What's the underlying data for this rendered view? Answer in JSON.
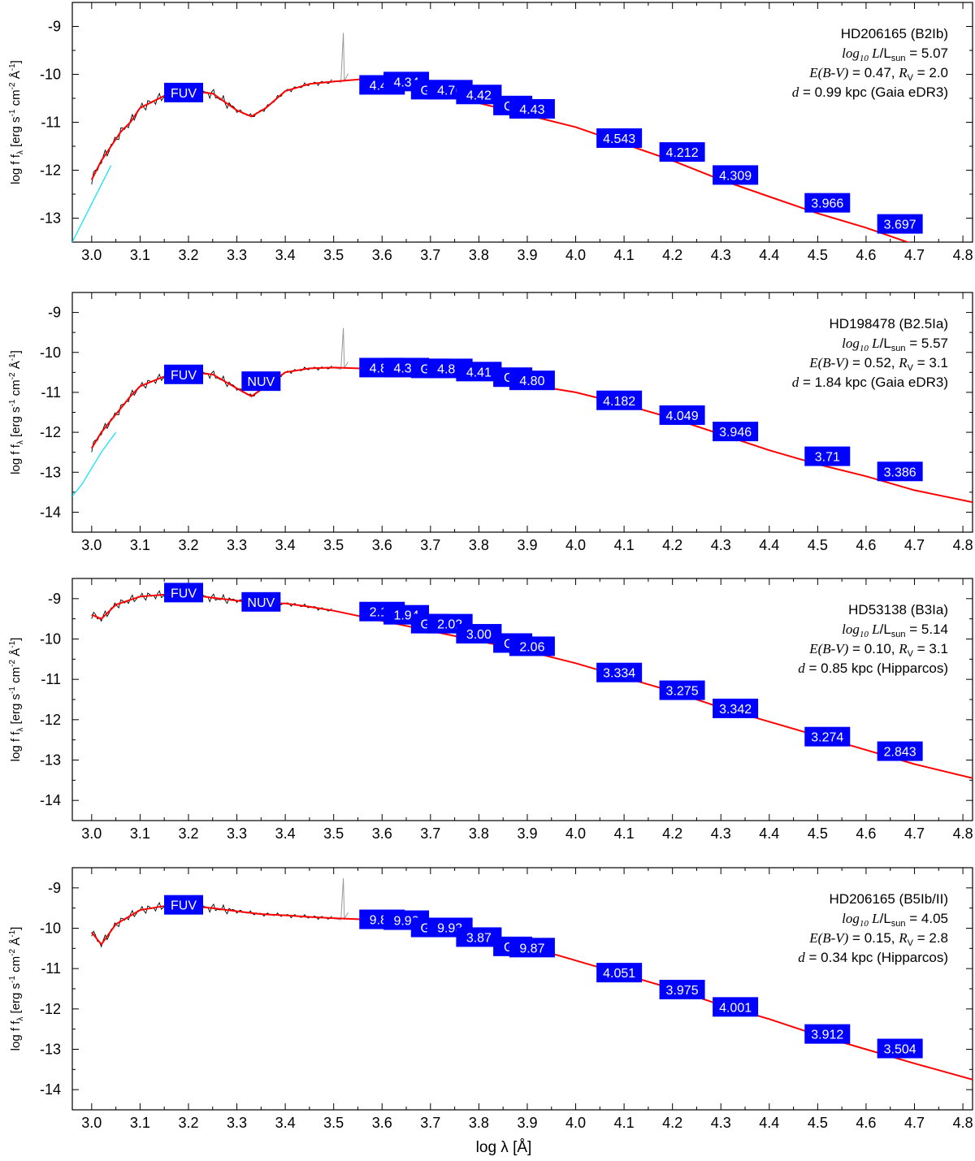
{
  "figure": {
    "xlabel": "log λ [Å]",
    "ylabel_panel": "log f",
    "ylabel_sub": "λ",
    "ylabel_unit": "[erg s",
    "ylabel_unit2": "cm",
    "ylabel_unit3": "Å",
    "colors": {
      "model": "#ff0000",
      "spectrum": "#000000",
      "iue": "#00e5ff",
      "optical": "#999999",
      "box": "#0000ff",
      "box_text": "#ffffff"
    }
  },
  "chart_data": [
    {
      "type": "line",
      "star": "HD206165 (B2Ib)",
      "lum_label": "log",
      "lum_sub": "10",
      "lum_text": " L/L",
      "lum_sun": "sun",
      "lum_value": " = 5.07",
      "ebv": "E(B-V) = 0.47, ",
      "rv_label": "R",
      "rv_sub": "V",
      "rv_value": " = 2.0",
      "distance": "d = 0.99 kpc (Gaia eDR3)",
      "xlim": [
        2.96,
        4.82
      ],
      "ylim": [
        -13.5,
        -8.5
      ],
      "yticks": [
        -9,
        -10,
        -11,
        -12,
        -13
      ],
      "xticks": [
        3.0,
        3.1,
        3.2,
        3.3,
        3.4,
        3.5,
        3.6,
        3.7,
        3.8,
        3.9,
        4.0,
        4.1,
        4.2,
        4.3,
        4.4,
        4.5,
        4.6,
        4.7,
        4.8
      ],
      "model": {
        "x": [
          3.0,
          3.02,
          3.04,
          3.06,
          3.08,
          3.1,
          3.15,
          3.2,
          3.25,
          3.3,
          3.33,
          3.36,
          3.4,
          3.45,
          3.5,
          3.56,
          3.6,
          3.7,
          3.8,
          3.9,
          4.0,
          4.1,
          4.2,
          4.3,
          4.4,
          4.5,
          4.6,
          4.7
        ],
        "y": [
          -12.2,
          -11.8,
          -11.5,
          -11.2,
          -11.0,
          -10.7,
          -10.45,
          -10.35,
          -10.4,
          -10.75,
          -10.88,
          -10.7,
          -10.35,
          -10.2,
          -10.15,
          -10.1,
          -10.15,
          -10.35,
          -10.6,
          -10.85,
          -11.1,
          -11.45,
          -11.8,
          -12.2,
          -12.55,
          -12.9,
          -13.2,
          -13.55
        ]
      },
      "iue": {
        "x": [
          2.96,
          2.98,
          3.0,
          3.02,
          3.04
        ],
        "y": [
          -13.5,
          -13.1,
          -12.7,
          -12.3,
          -11.9
        ]
      },
      "photometry": [
        {
          "label": "FUV",
          "x": 3.19,
          "y": -10.38
        },
        {
          "label": "4.49",
          "x": 3.6,
          "y": -10.22
        },
        {
          "label": "4.34",
          "x": 3.65,
          "y": -10.15
        },
        {
          "label": "Gbp",
          "x": 3.7,
          "y": -10.32
        },
        {
          "label": "4.76",
          "x": 3.74,
          "y": -10.32
        },
        {
          "label": "4.42",
          "x": 3.8,
          "y": -10.42
        },
        {
          "label": "Grp",
          "x": 3.87,
          "y": -10.65
        },
        {
          "label": "4.43",
          "x": 3.91,
          "y": -10.72
        },
        {
          "label": "4.543",
          "x": 4.09,
          "y": -11.33
        },
        {
          "label": "4.212",
          "x": 4.22,
          "y": -11.62
        },
        {
          "label": "4.309",
          "x": 4.33,
          "y": -12.1
        },
        {
          "label": "3.966",
          "x": 4.52,
          "y": -12.68
        },
        {
          "label": "3.697",
          "x": 4.67,
          "y": -13.12
        }
      ]
    },
    {
      "type": "line",
      "star": "HD198478 (B2.5Ia)",
      "lum_label": "log",
      "lum_sub": "10",
      "lum_text": " L/L",
      "lum_sun": "sun",
      "lum_value": " = 5.57",
      "ebv": "E(B-V) = 0.52, ",
      "rv_label": "R",
      "rv_sub": "V",
      "rv_value": " = 3.1",
      "distance": "d = 1.84 kpc (Gaia eDR3)",
      "xlim": [
        2.96,
        4.82
      ],
      "ylim": [
        -14.5,
        -8.5
      ],
      "yticks": [
        -9,
        -10,
        -11,
        -12,
        -13,
        -14
      ],
      "xticks": [
        3.0,
        3.1,
        3.2,
        3.3,
        3.4,
        3.5,
        3.6,
        3.7,
        3.8,
        3.9,
        4.0,
        4.1,
        4.2,
        4.3,
        4.4,
        4.5,
        4.6,
        4.7,
        4.8
      ],
      "model": {
        "x": [
          3.0,
          3.02,
          3.04,
          3.06,
          3.08,
          3.1,
          3.15,
          3.2,
          3.25,
          3.3,
          3.33,
          3.36,
          3.4,
          3.45,
          3.5,
          3.6,
          3.7,
          3.8,
          3.9,
          4.0,
          4.1,
          4.2,
          4.3,
          4.4,
          4.5,
          4.6,
          4.7,
          4.82
        ],
        "y": [
          -12.4,
          -12.0,
          -11.7,
          -11.4,
          -11.1,
          -10.85,
          -10.6,
          -10.5,
          -10.55,
          -10.9,
          -11.1,
          -10.85,
          -10.5,
          -10.4,
          -10.38,
          -10.42,
          -10.48,
          -10.6,
          -10.8,
          -11.0,
          -11.3,
          -11.65,
          -12.05,
          -12.45,
          -12.8,
          -13.1,
          -13.45,
          -13.75
        ]
      },
      "iue": {
        "x": [
          2.96,
          2.98,
          3.0,
          3.02,
          3.05
        ],
        "y": [
          -13.6,
          -13.3,
          -12.9,
          -12.5,
          -12.0
        ]
      },
      "photometry": [
        {
          "label": "FUV",
          "x": 3.19,
          "y": -10.55
        },
        {
          "label": "NUV",
          "x": 3.35,
          "y": -10.72
        },
        {
          "label": "4.80",
          "x": 3.6,
          "y": -10.38
        },
        {
          "label": "4.31",
          "x": 3.65,
          "y": -10.38
        },
        {
          "label": "Gbp",
          "x": 3.7,
          "y": -10.4
        },
        {
          "label": "4.81",
          "x": 3.74,
          "y": -10.4
        },
        {
          "label": "4.41",
          "x": 3.8,
          "y": -10.48
        },
        {
          "label": "Grp",
          "x": 3.87,
          "y": -10.62
        },
        {
          "label": "4.80",
          "x": 3.91,
          "y": -10.7
        },
        {
          "label": "4.182",
          "x": 4.09,
          "y": -11.2
        },
        {
          "label": "4.049",
          "x": 4.22,
          "y": -11.57
        },
        {
          "label": "3.946",
          "x": 4.33,
          "y": -11.98
        },
        {
          "label": "3.71",
          "x": 4.52,
          "y": -12.6
        },
        {
          "label": "3.386",
          "x": 4.67,
          "y": -12.98
        }
      ]
    },
    {
      "type": "line",
      "star": "HD53138 (B3Ia)",
      "lum_label": "log",
      "lum_sub": "10",
      "lum_text": " L/L",
      "lum_sun": "sun",
      "lum_value": " = 5.14",
      "ebv": "E(B-V) = 0.10, ",
      "rv_label": "R",
      "rv_sub": "V",
      "rv_value": " = 3.1",
      "distance": "d = 0.85 kpc (Hipparcos)",
      "xlim": [
        2.96,
        4.82
      ],
      "ylim": [
        -14.5,
        -8.5
      ],
      "yticks": [
        -9,
        -10,
        -11,
        -12,
        -13,
        -14
      ],
      "xticks": [
        3.0,
        3.1,
        3.2,
        3.3,
        3.4,
        3.5,
        3.6,
        3.7,
        3.8,
        3.9,
        4.0,
        4.1,
        4.2,
        4.3,
        4.4,
        4.5,
        4.6,
        4.7,
        4.8
      ],
      "model": {
        "x": [
          3.0,
          3.02,
          3.05,
          3.1,
          3.15,
          3.2,
          3.25,
          3.3,
          3.35,
          3.4,
          3.45,
          3.5,
          3.6,
          3.7,
          3.8,
          3.9,
          4.0,
          4.1,
          4.2,
          4.3,
          4.4,
          4.5,
          4.6,
          4.7,
          4.82
        ],
        "y": [
          -9.4,
          -9.5,
          -9.15,
          -8.95,
          -8.9,
          -8.9,
          -8.98,
          -9.05,
          -9.12,
          -9.12,
          -9.2,
          -9.3,
          -9.55,
          -9.8,
          -10.05,
          -10.3,
          -10.6,
          -10.95,
          -11.3,
          -11.7,
          -12.05,
          -12.4,
          -12.75,
          -13.1,
          -13.45
        ]
      },
      "iue": null,
      "photometry": [
        {
          "label": "FUV",
          "x": 3.19,
          "y": -8.85
        },
        {
          "label": "NUV",
          "x": 3.35,
          "y": -9.08
        },
        {
          "label": "2.14",
          "x": 3.6,
          "y": -9.32
        },
        {
          "label": "1.94",
          "x": 3.65,
          "y": -9.4
        },
        {
          "label": "Gbp",
          "x": 3.7,
          "y": -9.62
        },
        {
          "label": "2.02",
          "x": 3.74,
          "y": -9.62
        },
        {
          "label": "3.00",
          "x": 3.8,
          "y": -9.87
        },
        {
          "label": "Grp",
          "x": 3.87,
          "y": -10.1
        },
        {
          "label": "2.06",
          "x": 3.91,
          "y": -10.18
        },
        {
          "label": "3.334",
          "x": 4.09,
          "y": -10.83
        },
        {
          "label": "3.275",
          "x": 4.22,
          "y": -11.27
        },
        {
          "label": "3.342",
          "x": 4.33,
          "y": -11.72
        },
        {
          "label": "3.274",
          "x": 4.52,
          "y": -12.42
        },
        {
          "label": "2.843",
          "x": 4.67,
          "y": -12.78
        }
      ]
    },
    {
      "type": "line",
      "star": "HD206165 (B5Ib/II)",
      "lum_label": "log",
      "lum_sub": "10",
      "lum_text": " L/L",
      "lum_sun": "sun",
      "lum_value": " = 4.05",
      "ebv": "E(B-V) = 0.15, ",
      "rv_label": "R",
      "rv_sub": "V",
      "rv_value": " = 2.8",
      "distance": "d = 0.34 kpc (Hipparcos)",
      "xlim": [
        2.96,
        4.82
      ],
      "ylim": [
        -14.5,
        -8.5
      ],
      "yticks": [
        -9,
        -10,
        -11,
        -12,
        -13,
        -14
      ],
      "xticks": [
        3.0,
        3.1,
        3.2,
        3.3,
        3.4,
        3.5,
        3.6,
        3.7,
        3.8,
        3.9,
        4.0,
        4.1,
        4.2,
        4.3,
        4.4,
        4.5,
        4.6,
        4.7,
        4.8
      ],
      "model": {
        "x": [
          3.0,
          3.02,
          3.05,
          3.1,
          3.15,
          3.2,
          3.25,
          3.3,
          3.35,
          3.4,
          3.45,
          3.5,
          3.6,
          3.7,
          3.8,
          3.9,
          4.0,
          4.1,
          4.2,
          4.3,
          4.4,
          4.5,
          4.6,
          4.7,
          4.82
        ],
        "y": [
          -10.1,
          -10.4,
          -9.9,
          -9.55,
          -9.45,
          -9.45,
          -9.5,
          -9.58,
          -9.65,
          -9.68,
          -9.72,
          -9.75,
          -9.8,
          -9.95,
          -10.15,
          -10.45,
          -10.8,
          -11.15,
          -11.5,
          -11.9,
          -12.25,
          -12.65,
          -13.0,
          -13.35,
          -13.75
        ]
      },
      "iue": null,
      "photometry": [
        {
          "label": "FUV",
          "x": 3.19,
          "y": -9.42
        },
        {
          "label": "9.83",
          "x": 3.6,
          "y": -9.78
        },
        {
          "label": "9.90",
          "x": 3.65,
          "y": -9.8
        },
        {
          "label": "Gbp",
          "x": 3.7,
          "y": -9.98
        },
        {
          "label": "9.93",
          "x": 3.74,
          "y": -9.98
        },
        {
          "label": "3.87",
          "x": 3.8,
          "y": -10.22
        },
        {
          "label": "Grp",
          "x": 3.87,
          "y": -10.45
        },
        {
          "label": "9.87",
          "x": 3.91,
          "y": -10.48
        },
        {
          "label": "4.051",
          "x": 4.09,
          "y": -11.1
        },
        {
          "label": "3.975",
          "x": 4.22,
          "y": -11.52
        },
        {
          "label": "4.001",
          "x": 4.33,
          "y": -11.95
        },
        {
          "label": "3.912",
          "x": 4.52,
          "y": -12.62
        },
        {
          "label": "3.504",
          "x": 4.67,
          "y": -12.98
        }
      ]
    }
  ]
}
